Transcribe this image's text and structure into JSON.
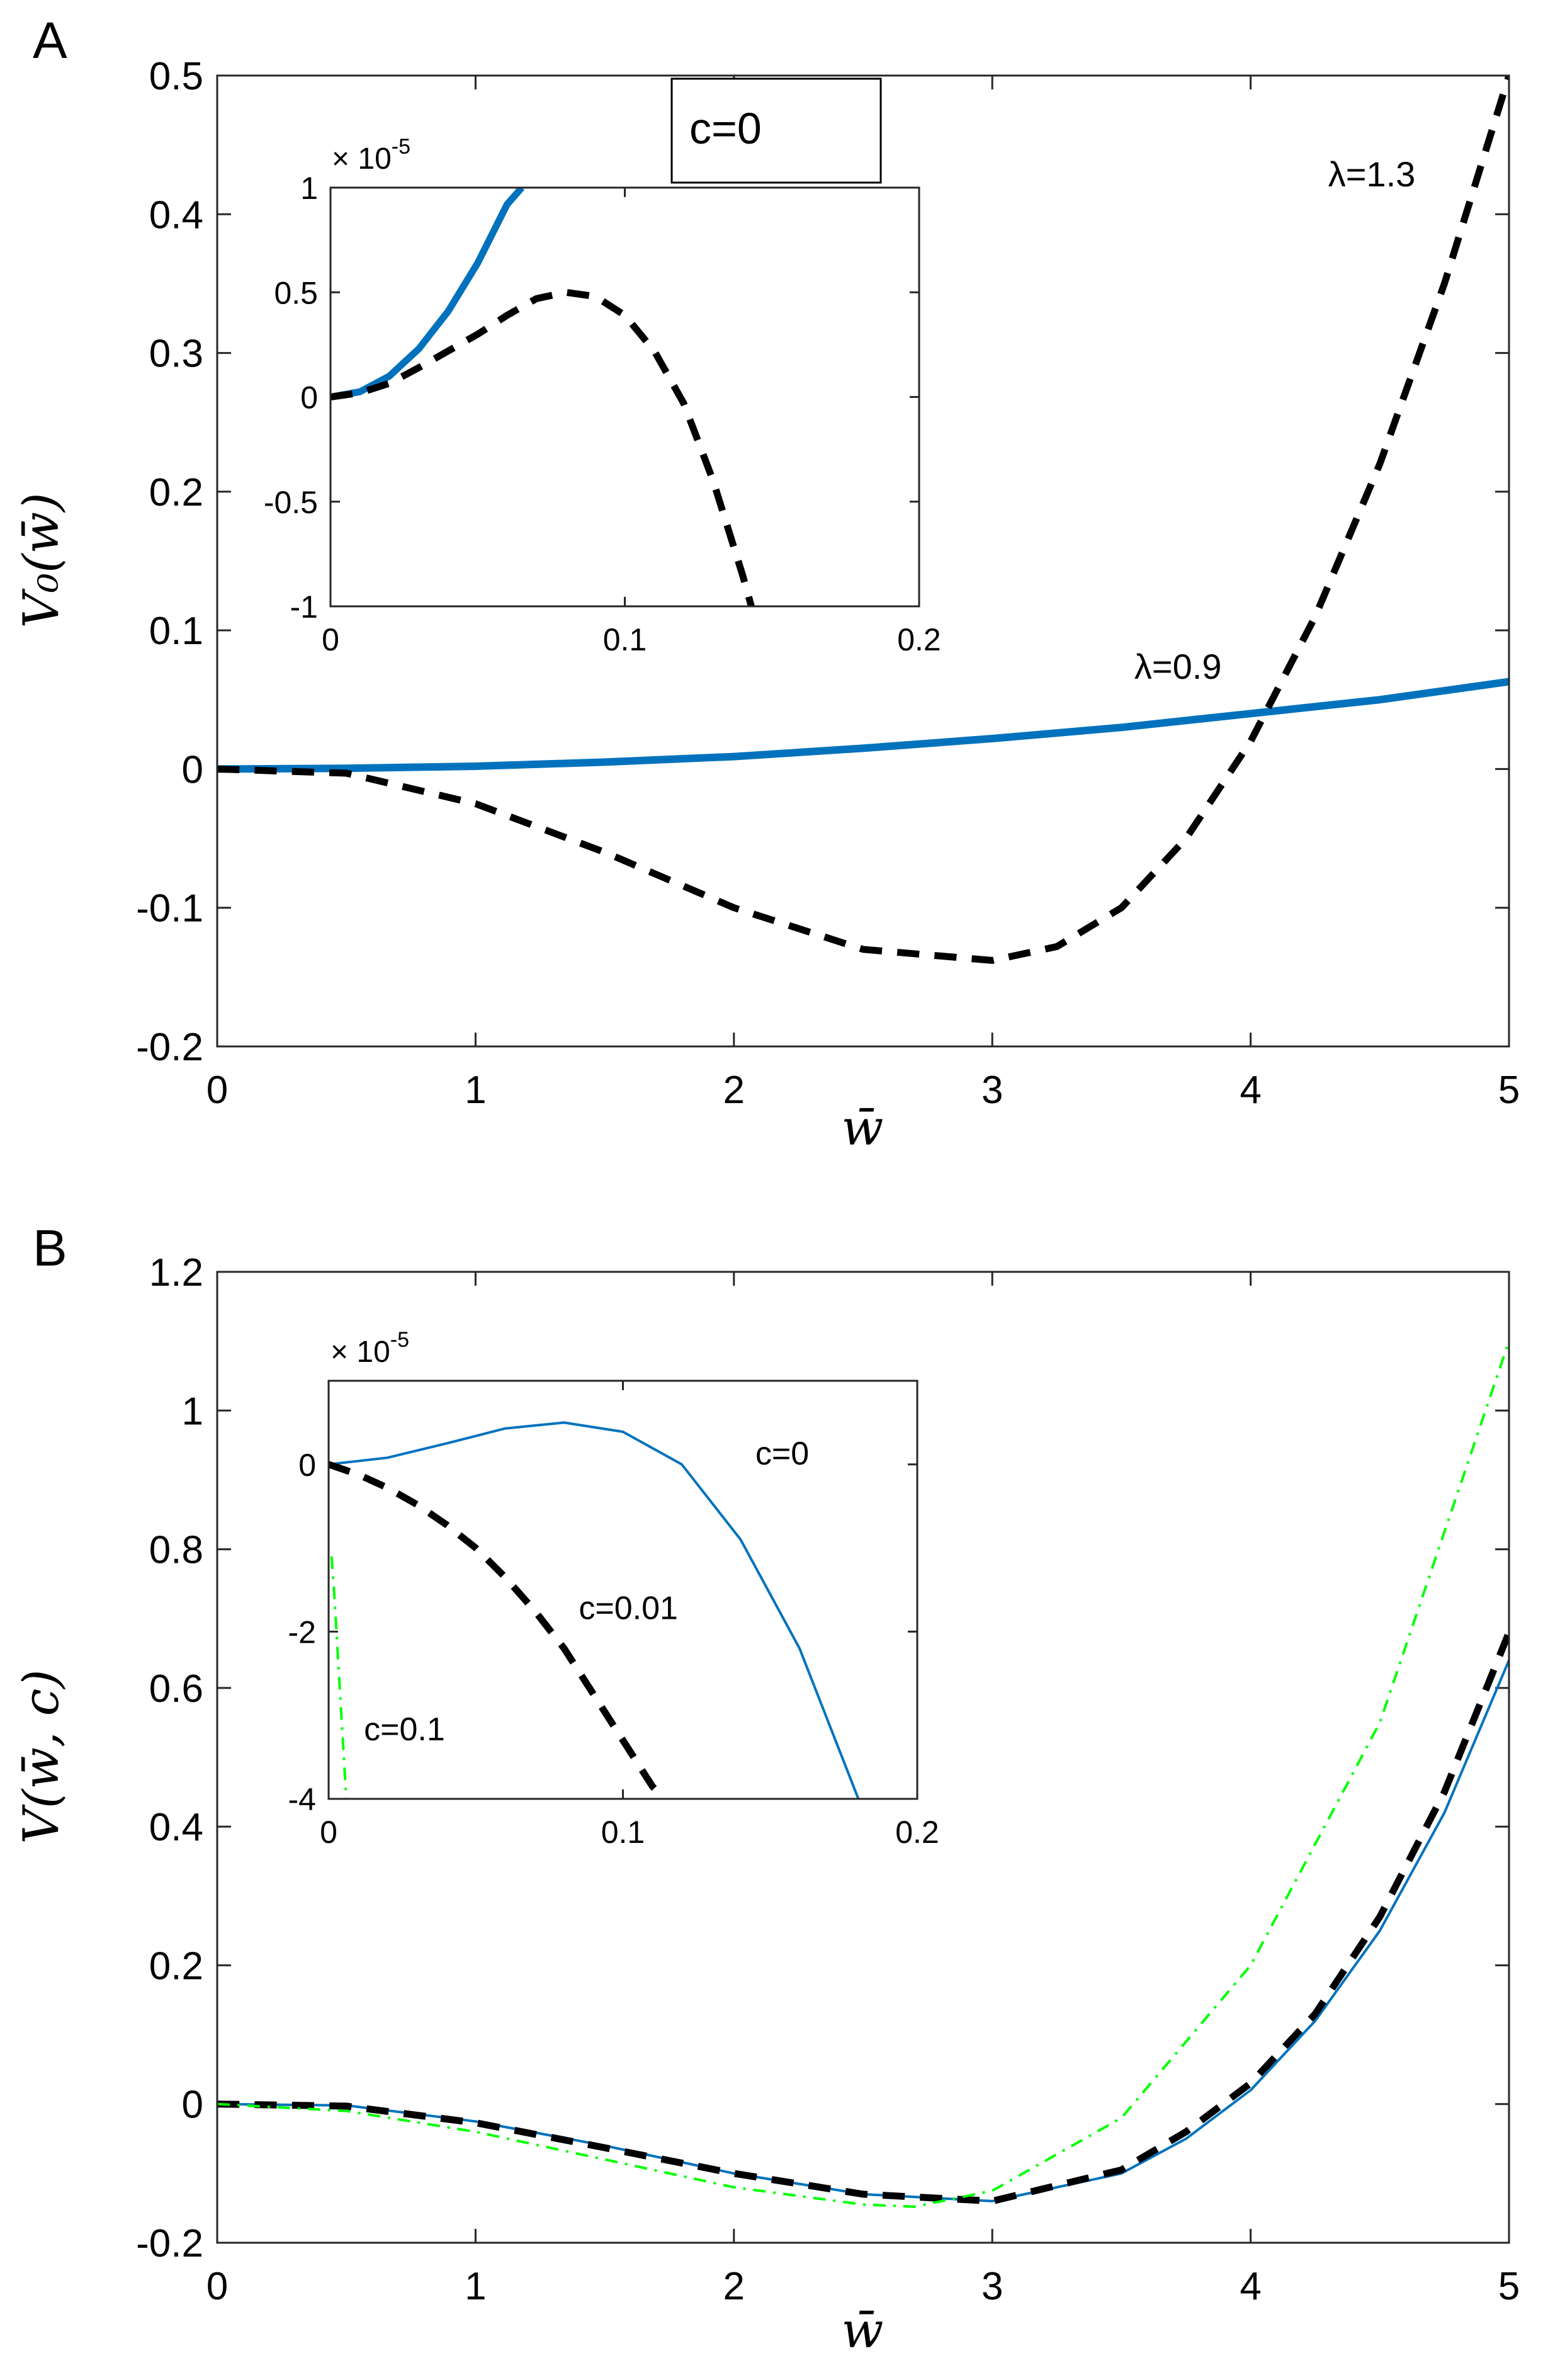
{
  "colors": {
    "blue": "#0072BD",
    "black": "#000000",
    "green": "#00FF00",
    "axis": "#262626"
  },
  "chart_data": [
    {
      "panel": "A",
      "type": "line",
      "xlabel": "w̄",
      "ylabel": "V₀(w̄)",
      "xlim": [
        0,
        5
      ],
      "ylim": [
        -0.2,
        0.5
      ],
      "xticks": [
        "0",
        "1",
        "2",
        "3",
        "4",
        "5"
      ],
      "yticks": [
        "-0.2",
        "-0.1",
        "0",
        "0.1",
        "0.2",
        "0.3",
        "0.4",
        "0.5"
      ],
      "legend_box": "c=0",
      "series": [
        {
          "name": "λ=0.9",
          "style": "solid",
          "color": "#0072BD",
          "x": [
            0,
            0.5,
            1,
            1.5,
            2,
            2.5,
            3,
            3.5,
            4,
            4.5,
            5
          ],
          "y": [
            0,
            0.0005,
            0.002,
            0.005,
            0.009,
            0.015,
            0.022,
            0.03,
            0.04,
            0.05,
            0.063
          ]
        },
        {
          "name": "λ=1.3",
          "style": "dashed",
          "color": "#000000",
          "x": [
            0,
            0.5,
            1,
            1.5,
            2,
            2.5,
            3,
            3.25,
            3.5,
            3.75,
            4,
            4.25,
            4.5,
            4.75,
            5
          ],
          "y": [
            0,
            -0.003,
            -0.025,
            -0.06,
            -0.1,
            -0.13,
            -0.138,
            -0.128,
            -0.1,
            -0.05,
            0.02,
            0.11,
            0.22,
            0.35,
            0.5
          ]
        }
      ],
      "annotations": [
        {
          "text": "λ=1.3",
          "x": 4.3,
          "y": 0.42
        },
        {
          "text": "λ=0.9",
          "x": 3.55,
          "y": 0.065
        }
      ],
      "inset": {
        "xlim": [
          0,
          0.2
        ],
        "ylim": [
          -1,
          1
        ],
        "xticks": [
          "0",
          "0.1",
          "0.2"
        ],
        "yticks": [
          "-1",
          "-0.5",
          "0",
          "0.5",
          "1"
        ],
        "exponent": "× 10",
        "exponent_power": "-5",
        "series": [
          {
            "name": "λ=0.9",
            "style": "solid",
            "color": "#0072BD",
            "x": [
              0,
              0.01,
              0.02,
              0.03,
              0.04,
              0.05,
              0.06,
              0.065
            ],
            "y": [
              0,
              0.025,
              0.1,
              0.23,
              0.41,
              0.64,
              0.92,
              1.0
            ]
          },
          {
            "name": "λ=1.3",
            "style": "dashed",
            "color": "#000000",
            "x": [
              0,
              0.01,
              0.02,
              0.03,
              0.04,
              0.05,
              0.06,
              0.07,
              0.08,
              0.09,
              0.1,
              0.11,
              0.12,
              0.13,
              0.14,
              0.143
            ],
            "y": [
              0,
              0.02,
              0.065,
              0.14,
              0.22,
              0.3,
              0.39,
              0.47,
              0.5,
              0.48,
              0.39,
              0.22,
              -0.03,
              -0.4,
              -0.85,
              -1.0
            ]
          }
        ]
      }
    },
    {
      "panel": "B",
      "type": "line",
      "xlabel": "w̄",
      "ylabel": "V(w̄, c)",
      "xlim": [
        0,
        5
      ],
      "ylim": [
        -0.2,
        1.2
      ],
      "xticks": [
        "0",
        "1",
        "2",
        "3",
        "4",
        "5"
      ],
      "yticks": [
        "-0.2",
        "0",
        "0.2",
        "0.4",
        "0.6",
        "0.8",
        "1",
        "1.2"
      ],
      "series": [
        {
          "name": "c=0",
          "style": "solid",
          "color": "#0072BD",
          "x": [
            0,
            0.5,
            1,
            1.5,
            2,
            2.5,
            3,
            3.5,
            3.75,
            4,
            4.25,
            4.5,
            4.75,
            5
          ],
          "y": [
            0,
            -0.002,
            -0.025,
            -0.06,
            -0.1,
            -0.13,
            -0.14,
            -0.1,
            -0.05,
            0.02,
            0.12,
            0.25,
            0.42,
            0.64
          ]
        },
        {
          "name": "c=0.01",
          "style": "dashed",
          "color": "#000000",
          "x": [
            0,
            0.5,
            1,
            1.5,
            2,
            2.5,
            3,
            3.5,
            3.75,
            4,
            4.25,
            4.5,
            4.75,
            5
          ],
          "y": [
            0,
            -0.003,
            -0.027,
            -0.063,
            -0.1,
            -0.13,
            -0.14,
            -0.095,
            -0.04,
            0.03,
            0.13,
            0.27,
            0.45,
            0.68
          ]
        },
        {
          "name": "c=0.1",
          "style": "dashdot",
          "color": "#00FF00",
          "x": [
            0,
            0.5,
            1,
            1.5,
            2,
            2.5,
            2.7,
            3,
            3.5,
            4,
            4.5,
            5
          ],
          "y": [
            0,
            -0.01,
            -0.04,
            -0.08,
            -0.12,
            -0.145,
            -0.148,
            -0.125,
            -0.02,
            0.2,
            0.55,
            1.1
          ]
        }
      ],
      "inset": {
        "xlim": [
          0,
          0.2
        ],
        "ylim": [
          -4,
          1
        ],
        "xticks": [
          "0",
          "0.1",
          "0.2"
        ],
        "yticks": [
          "-4",
          "-2",
          "0"
        ],
        "exponent": "× 10",
        "exponent_power": "-5",
        "series": [
          {
            "name": "c=0",
            "style": "solid",
            "color": "#0072BD",
            "x": [
              0,
              0.02,
              0.04,
              0.06,
              0.08,
              0.1,
              0.12,
              0.14,
              0.16,
              0.18
            ],
            "y": [
              0,
              0.08,
              0.25,
              0.43,
              0.5,
              0.39,
              0,
              -0.9,
              -2.2,
              -4
            ]
          },
          {
            "name": "c=0.01",
            "style": "dashed",
            "color": "#000000",
            "x": [
              0,
              0.01,
              0.02,
              0.03,
              0.04,
              0.05,
              0.06,
              0.07,
              0.08,
              0.09,
              0.1,
              0.11,
              0.114
            ],
            "y": [
              0,
              -0.12,
              -0.28,
              -0.48,
              -0.72,
              -1.0,
              -1.35,
              -1.75,
              -2.2,
              -2.75,
              -3.3,
              -3.85,
              -4.0
            ]
          },
          {
            "name": "c=0.1",
            "style": "dashdot",
            "color": "#00FF00",
            "x": [
              0.001,
              0.002,
              0.003,
              0.004,
              0.005,
              0.006
            ],
            "y": [
              -1.1,
              -1.6,
              -2.2,
              -2.8,
              -3.4,
              -4.0
            ]
          }
        ],
        "annotations": [
          {
            "text": "c=0",
            "x": 0.145,
            "y": 0
          },
          {
            "text": "c=0.01",
            "x": 0.085,
            "y": -1.85
          },
          {
            "text": "c=0.1",
            "x": 0.012,
            "y": -3.3
          }
        ]
      }
    }
  ]
}
